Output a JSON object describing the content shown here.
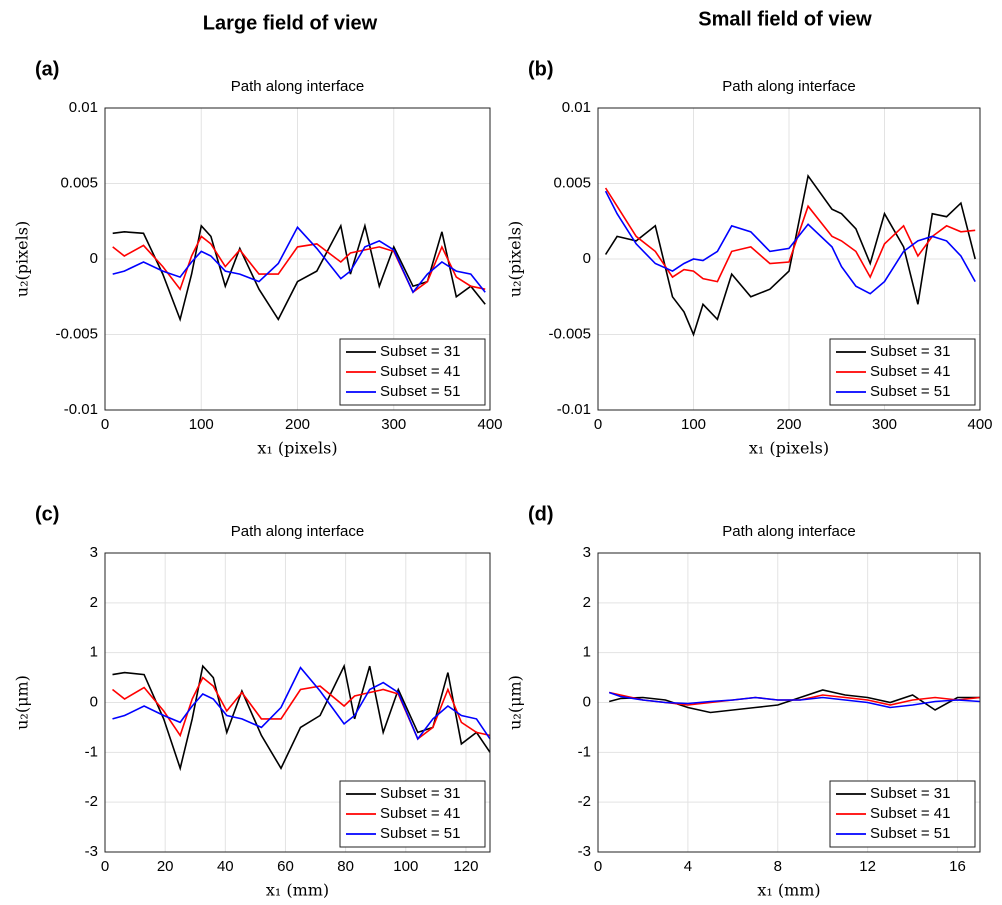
{
  "headers": [
    "Large field of view",
    "Small field of view"
  ],
  "chart_data": [
    {
      "type": "line",
      "label": "(a)",
      "title": "Path along interface",
      "x_label": "x₁ (pixels)",
      "y_label": "u₂(pixels)",
      "x": [
        8,
        20,
        40,
        60,
        78,
        90,
        100,
        110,
        125,
        140,
        160,
        180,
        200,
        220,
        245,
        255,
        270,
        285,
        300,
        320,
        335,
        350,
        365,
        380,
        395
      ],
      "xlim": [
        0,
        400
      ],
      "xticks": [
        0,
        100,
        200,
        300,
        400
      ],
      "ylim": [
        -0.01,
        0.01
      ],
      "yticks": [
        -0.01,
        -0.005,
        0,
        0.005,
        0.01
      ],
      "grid": true,
      "legend": "lower right",
      "series": [
        {
          "name": "Subset = 31",
          "color": "#000000",
          "values": [
            0.0017,
            0.0018,
            0.0017,
            -0.001,
            -0.004,
            -0.001,
            0.0022,
            0.0015,
            -0.0018,
            0.0007,
            -0.002,
            -0.004,
            -0.0015,
            -0.0008,
            0.0022,
            -0.001,
            0.0022,
            -0.0018,
            0.0008,
            -0.0018,
            -0.0015,
            0.0018,
            -0.0025,
            -0.0018,
            -0.003
          ]
        },
        {
          "name": "Subset = 41",
          "color": "#ff0000",
          "values": [
            0.0008,
            0.0002,
            0.0009,
            -0.0005,
            -0.002,
            0.0002,
            0.0015,
            0.001,
            -0.0005,
            0.0006,
            -0.001,
            -0.001,
            0.0008,
            0.001,
            -0.0002,
            0.0004,
            0.0006,
            0.0008,
            0.0005,
            -0.0022,
            -0.0015,
            0.0008,
            -0.0012,
            -0.0018,
            -0.002
          ]
        },
        {
          "name": "Subset = 51",
          "color": "#0000ff",
          "values": [
            -0.001,
            -0.0008,
            -0.0002,
            -0.0008,
            -0.0012,
            -0.0002,
            0.0005,
            0.0002,
            -0.0008,
            -0.001,
            -0.0015,
            -0.0003,
            0.0021,
            0.0007,
            -0.0013,
            -0.0008,
            0.0008,
            0.0012,
            0.0006,
            -0.0022,
            -0.001,
            -0.0002,
            -0.0008,
            -0.001,
            -0.0022
          ]
        }
      ]
    },
    {
      "type": "line",
      "label": "(b)",
      "title": "Path along interface",
      "x_label": "x₁ (pixels)",
      "y_label": "u₂(pixels)",
      "x": [
        8,
        20,
        40,
        60,
        78,
        90,
        100,
        110,
        125,
        140,
        160,
        180,
        200,
        220,
        245,
        255,
        270,
        285,
        300,
        320,
        335,
        350,
        365,
        380,
        395
      ],
      "xlim": [
        0,
        400
      ],
      "xticks": [
        0,
        100,
        200,
        300,
        400
      ],
      "ylim": [
        -0.01,
        0.01
      ],
      "yticks": [
        -0.01,
        -0.005,
        0,
        0.005,
        0.01
      ],
      "grid": true,
      "legend": "lower right",
      "series": [
        {
          "name": "Subset = 31",
          "color": "#000000",
          "values": [
            0.0003,
            0.0015,
            0.0012,
            0.0022,
            -0.0025,
            -0.0035,
            -0.005,
            -0.003,
            -0.004,
            -0.001,
            -0.0025,
            -0.002,
            -0.0008,
            0.0055,
            0.0033,
            0.003,
            0.002,
            -0.0003,
            0.003,
            0.0008,
            -0.003,
            0.003,
            0.0028,
            0.0037,
            0
          ]
        },
        {
          "name": "Subset = 41",
          "color": "#ff0000",
          "values": [
            0.0047,
            0.0035,
            0.0015,
            0.0005,
            -0.0012,
            -0.0007,
            -0.0008,
            -0.0013,
            -0.0015,
            0.0005,
            0.0008,
            -0.0003,
            -0.0002,
            0.0035,
            0.0015,
            0.0012,
            0.0005,
            -0.0012,
            0.001,
            0.0022,
            0.0002,
            0.0015,
            0.0022,
            0.0018,
            0.0019
          ]
        },
        {
          "name": "Subset = 51",
          "color": "#0000ff",
          "values": [
            0.0045,
            0.003,
            0.001,
            -0.0003,
            -0.0008,
            -0.0003,
            0,
            -0.0001,
            0.0005,
            0.0022,
            0.0018,
            0.0005,
            0.0007,
            0.0023,
            0.0008,
            -0.0005,
            -0.0018,
            -0.0023,
            -0.0015,
            0.0005,
            0.0012,
            0.0015,
            0.0012,
            0.0002,
            -0.0015
          ]
        }
      ]
    },
    {
      "type": "line",
      "label": "(c)",
      "title": "Path along interface",
      "x_label": "x₁ (mm)",
      "y_label": "u₂(μm)",
      "x": [
        2.5,
        6.5,
        13,
        19.5,
        25,
        29,
        32.5,
        36,
        40.5,
        45.5,
        52,
        58.5,
        65,
        71.5,
        79.5,
        83,
        88,
        92.5,
        97.5,
        104,
        109,
        114,
        118.5,
        123.5,
        128
      ],
      "xlim": [
        0,
        128
      ],
      "xticks": [
        0,
        20,
        40,
        60,
        80,
        100,
        120
      ],
      "ylim": [
        -3,
        3
      ],
      "yticks": [
        -3,
        -2,
        -1,
        0,
        1,
        2,
        3
      ],
      "grid": true,
      "legend": "lower right",
      "series": [
        {
          "name": "Subset = 31",
          "color": "#000000",
          "values": [
            0.56,
            0.6,
            0.56,
            -0.33,
            -1.32,
            -0.33,
            0.73,
            0.5,
            -0.6,
            0.23,
            -0.66,
            -1.32,
            -0.5,
            -0.26,
            0.73,
            -0.33,
            0.73,
            -0.6,
            0.26,
            -0.6,
            -0.5,
            0.6,
            -0.83,
            -0.6,
            -1.0
          ]
        },
        {
          "name": "Subset = 41",
          "color": "#ff0000",
          "values": [
            0.26,
            0.07,
            0.3,
            -0.17,
            -0.66,
            0.07,
            0.5,
            0.33,
            -0.17,
            0.2,
            -0.33,
            -0.33,
            0.26,
            0.33,
            -0.07,
            0.13,
            0.2,
            0.26,
            0.17,
            -0.73,
            -0.5,
            0.26,
            -0.4,
            -0.6,
            -0.66
          ]
        },
        {
          "name": "Subset = 51",
          "color": "#0000ff",
          "values": [
            -0.33,
            -0.26,
            -0.07,
            -0.26,
            -0.4,
            -0.07,
            0.17,
            0.07,
            -0.26,
            -0.33,
            -0.5,
            -0.1,
            0.7,
            0.23,
            -0.43,
            -0.26,
            0.26,
            0.4,
            0.2,
            -0.73,
            -0.33,
            -0.07,
            -0.26,
            -0.33,
            -0.73
          ]
        }
      ]
    },
    {
      "type": "line",
      "label": "(d)",
      "title": "Path along interface",
      "x_label": "x₁ (mm)",
      "y_label": "u₂(μm)",
      "x": [
        0.5,
        1,
        2,
        3,
        4,
        5,
        6,
        7,
        8,
        9,
        10,
        11,
        12,
        13,
        14,
        15,
        16,
        17
      ],
      "xlim": [
        0,
        17
      ],
      "xticks": [
        0,
        4,
        8,
        12,
        16
      ],
      "ylim": [
        -3,
        3
      ],
      "yticks": [
        -3,
        -2,
        -1,
        0,
        1,
        2,
        3
      ],
      "grid": true,
      "legend": "lower right",
      "series": [
        {
          "name": "Subset = 31",
          "color": "#000000",
          "values": [
            0.02,
            0.08,
            0.1,
            0.05,
            -0.1,
            -0.2,
            -0.15,
            -0.1,
            -0.05,
            0.1,
            0.25,
            0.15,
            0.1,
            0,
            0.15,
            -0.15,
            0.1,
            0.1
          ]
        },
        {
          "name": "Subset = 41",
          "color": "#ff0000",
          "values": [
            0.2,
            0.15,
            0.05,
            0,
            -0.05,
            0,
            0.05,
            0.1,
            0.05,
            0.05,
            0.15,
            0.1,
            0.05,
            -0.05,
            0.05,
            0.1,
            0.05,
            0.1
          ]
        },
        {
          "name": "Subset = 51",
          "color": "#0000ff",
          "values": [
            0.2,
            0.12,
            0.05,
            0,
            -0.02,
            0.02,
            0.05,
            0.1,
            0.05,
            0.05,
            0.1,
            0.05,
            0,
            -0.1,
            -0.05,
            0.02,
            0.05,
            0.02
          ]
        }
      ]
    }
  ]
}
